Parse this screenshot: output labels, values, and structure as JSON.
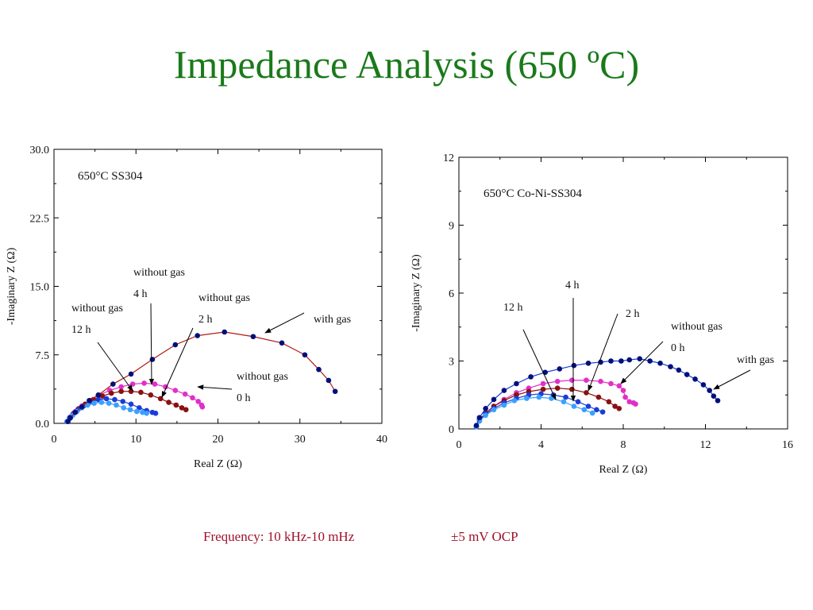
{
  "slide": {
    "title": "Impedance Analysis (650 ºC)",
    "frequency_note": "Frequency: 10 kHz-10 mHz",
    "ocp_note": "±5 mV OCP"
  },
  "chart_data": [
    {
      "type": "scatter",
      "title": "",
      "inset_label_prefix": "650°",
      "inset_label_main": "C SS304",
      "xlabel": "Real Z (Ω)",
      "ylabel": "-Imaginary Z (Ω)",
      "xlim": [
        0,
        40
      ],
      "ylim": [
        0,
        30
      ],
      "xticks": [
        "0",
        "10",
        "20",
        "30",
        "40"
      ],
      "yticks": [
        "0.0",
        "7.5",
        "15.0",
        "22.5",
        "30.0"
      ],
      "grid": false,
      "legend": "none",
      "series": [
        {
          "color": "#e030c8",
          "marker_color": "#e030c8",
          "connected": true,
          "x": [
            1.6,
            2.0,
            2.6,
            3.4,
            4.4,
            5.5,
            6.8,
            8.2,
            9.6,
            11.0,
            12.3,
            13.6,
            14.8,
            16.0,
            16.9,
            17.6,
            18.0,
            18.1
          ],
          "y": [
            0.2,
            0.7,
            1.3,
            1.9,
            2.5,
            3.1,
            3.6,
            4.0,
            4.3,
            4.4,
            4.3,
            4.0,
            3.6,
            3.2,
            2.8,
            2.4,
            2.0,
            1.8
          ]
        },
        {
          "color": "#8b1010",
          "marker_color": "#8b1010",
          "connected": true,
          "x": [
            1.6,
            1.9,
            2.4,
            3.0,
            3.8,
            4.8,
            5.9,
            7.0,
            8.2,
            9.4,
            10.6,
            11.8,
            13.0,
            14.0,
            14.9,
            15.6,
            16.1
          ],
          "y": [
            0.2,
            0.6,
            1.1,
            1.6,
            2.1,
            2.6,
            3.0,
            3.3,
            3.5,
            3.5,
            3.4,
            3.1,
            2.7,
            2.3,
            2.0,
            1.7,
            1.5
          ]
        },
        {
          "color": "#1a3cd8",
          "marker_color": "#1a3cd8",
          "connected": true,
          "x": [
            1.6,
            1.9,
            2.3,
            2.9,
            3.6,
            4.4,
            5.4,
            6.4,
            7.4,
            8.4,
            9.4,
            10.4,
            11.3,
            12.0,
            12.4
          ],
          "y": [
            0.2,
            0.6,
            1.0,
            1.5,
            1.9,
            2.3,
            2.6,
            2.7,
            2.6,
            2.4,
            2.1,
            1.7,
            1.4,
            1.2,
            1.1
          ]
        },
        {
          "color": "#3aa0ff",
          "marker_color": "#3aa0ff",
          "connected": true,
          "x": [
            1.6,
            1.9,
            2.3,
            2.8,
            3.4,
            4.1,
            4.9,
            5.8,
            6.7,
            7.6,
            8.5,
            9.3,
            10.1,
            10.8,
            11.3
          ],
          "y": [
            0.2,
            0.5,
            0.9,
            1.3,
            1.7,
            2.0,
            2.2,
            2.3,
            2.2,
            2.0,
            1.7,
            1.5,
            1.3,
            1.2,
            1.1
          ]
        },
        {
          "color": "#b01818",
          "marker_color": "#00107a",
          "connected": true,
          "x": [
            1.7,
            2.0,
            2.6,
            3.4,
            4.3,
            5.4,
            7.2,
            9.4,
            12.0,
            14.8,
            17.5,
            20.8,
            24.3,
            27.8,
            30.6,
            32.3,
            33.5,
            34.3
          ],
          "y": [
            0.2,
            0.6,
            1.2,
            1.8,
            2.5,
            3.1,
            4.3,
            5.4,
            7.0,
            8.6,
            9.6,
            10.0,
            9.5,
            8.8,
            7.5,
            5.9,
            4.7,
            3.5
          ]
        }
      ],
      "annotations": [
        {
          "line1": "without gas",
          "line2": "12 h"
        },
        {
          "line1": "without gas",
          "line2": "4 h"
        },
        {
          "line1": "without gas",
          "line2": "2 h"
        },
        {
          "line1": "without gas",
          "line2": "0 h"
        },
        {
          "line1": "with gas",
          "line2": ""
        }
      ]
    },
    {
      "type": "scatter",
      "title": "",
      "inset_label_prefix": "650°",
      "inset_label_main": "C Co-Ni-SS304",
      "xlabel": "Real Z (Ω)",
      "ylabel": "-Imaginary Z (Ω)",
      "xlim": [
        0,
        16
      ],
      "ylim": [
        0,
        12
      ],
      "xticks": [
        "0",
        "4",
        "8",
        "12",
        "16"
      ],
      "yticks": [
        "0",
        "3",
        "6",
        "9",
        "12"
      ],
      "grid": false,
      "legend": "none",
      "series": [
        {
          "color": "#e030c8",
          "marker_color": "#e030c8",
          "connected": true,
          "x": [
            0.85,
            1.0,
            1.3,
            1.7,
            2.2,
            2.8,
            3.4,
            4.1,
            4.8,
            5.5,
            6.2,
            6.9,
            7.4,
            7.8,
            8.0,
            8.1,
            8.3,
            8.5,
            8.6
          ],
          "y": [
            0.1,
            0.4,
            0.7,
            1.0,
            1.3,
            1.6,
            1.8,
            2.0,
            2.1,
            2.15,
            2.15,
            2.1,
            2.0,
            1.9,
            1.7,
            1.4,
            1.2,
            1.15,
            1.1
          ]
        },
        {
          "color": "#8b1010",
          "marker_color": "#8b1010",
          "connected": true,
          "x": [
            0.85,
            1.0,
            1.3,
            1.7,
            2.2,
            2.8,
            3.4,
            4.1,
            4.8,
            5.5,
            6.2,
            6.8,
            7.3,
            7.6,
            7.8
          ],
          "y": [
            0.1,
            0.4,
            0.7,
            1.0,
            1.25,
            1.5,
            1.65,
            1.75,
            1.8,
            1.75,
            1.6,
            1.4,
            1.2,
            1.0,
            0.9
          ]
        },
        {
          "color": "#1a3cd8",
          "marker_color": "#1a3cd8",
          "connected": true,
          "x": [
            0.85,
            1.0,
            1.3,
            1.7,
            2.2,
            2.8,
            3.4,
            4.0,
            4.6,
            5.2,
            5.8,
            6.3,
            6.7,
            7.0
          ],
          "y": [
            0.1,
            0.35,
            0.65,
            0.9,
            1.15,
            1.35,
            1.5,
            1.55,
            1.5,
            1.4,
            1.2,
            1.0,
            0.85,
            0.75
          ]
        },
        {
          "color": "#3aa0ff",
          "marker_color": "#3aa0ff",
          "connected": true,
          "x": [
            0.85,
            1.0,
            1.3,
            1.7,
            2.2,
            2.7,
            3.3,
            3.9,
            4.5,
            5.1,
            5.6,
            6.1,
            6.5
          ],
          "y": [
            0.1,
            0.35,
            0.6,
            0.85,
            1.05,
            1.25,
            1.35,
            1.4,
            1.35,
            1.2,
            1.0,
            0.85,
            0.7
          ]
        },
        {
          "color": "#1a3cd8",
          "marker_color": "#00107a",
          "connected": true,
          "x": [
            0.85,
            1.0,
            1.3,
            1.7,
            2.2,
            2.8,
            3.5,
            4.2,
            4.9,
            5.6,
            6.3,
            6.9,
            7.4,
            7.9,
            8.3,
            8.8,
            9.3,
            9.8,
            10.3,
            10.7,
            11.1,
            11.5,
            11.9,
            12.2,
            12.4,
            12.6
          ],
          "y": [
            0.15,
            0.5,
            0.9,
            1.3,
            1.7,
            2.0,
            2.3,
            2.5,
            2.65,
            2.8,
            2.9,
            2.95,
            3.0,
            3.0,
            3.05,
            3.1,
            3.0,
            2.9,
            2.75,
            2.6,
            2.4,
            2.2,
            1.95,
            1.7,
            1.45,
            1.25
          ]
        }
      ],
      "annotations": [
        {
          "line1": "12 h",
          "line2": ""
        },
        {
          "line1": "4 h",
          "line2": ""
        },
        {
          "line1": "2 h",
          "line2": ""
        },
        {
          "line1": "without gas",
          "line2": "0 h"
        },
        {
          "line1": "with gas",
          "line2": ""
        }
      ]
    }
  ]
}
